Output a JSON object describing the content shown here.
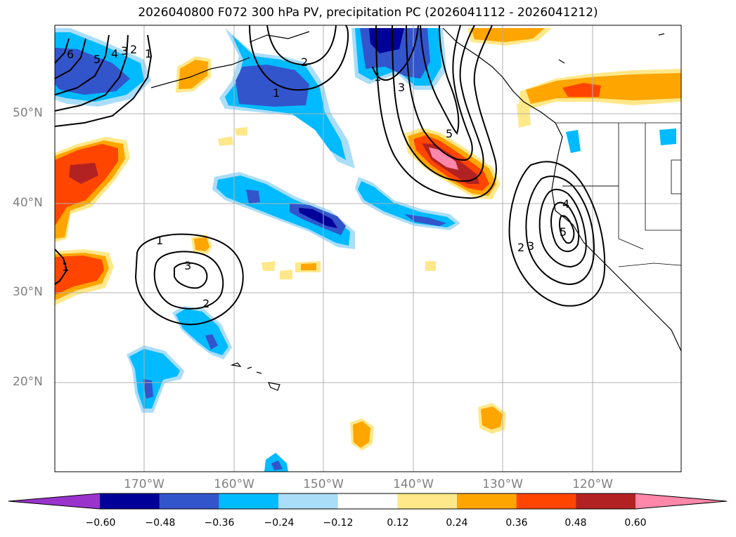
{
  "title": "2026040800 F072 300 hPa PV, precipitation PC (2026041112 - 2026041212)",
  "map": {
    "lat_labels": [
      "50°N",
      "40°N",
      "30°N",
      "20°N"
    ],
    "lon_labels": [
      "170°W",
      "160°W",
      "150°W",
      "140°W",
      "130°W",
      "120°W"
    ],
    "gridline_color": "#b0b0b0"
  },
  "contour_labels": [
    "6",
    "5",
    "4",
    "3",
    "2",
    "1",
    "2",
    "1",
    "1",
    "3",
    "5",
    "1",
    "3",
    "2",
    "2",
    "3",
    "4",
    "5",
    "1"
  ],
  "colorbar": {
    "colors": [
      "#9933cc",
      "#000099",
      "#3355cc",
      "#00bbff",
      "#aaddf8",
      "#ffffff",
      "#ffe88a",
      "#ffa500",
      "#ff4500",
      "#b22222",
      "#ff88aa"
    ],
    "tick_labels": [
      "−0.60",
      "−0.48",
      "−0.36",
      "−0.24",
      "−0.12",
      "0.12",
      "0.24",
      "0.36",
      "0.48",
      "0.60"
    ]
  }
}
